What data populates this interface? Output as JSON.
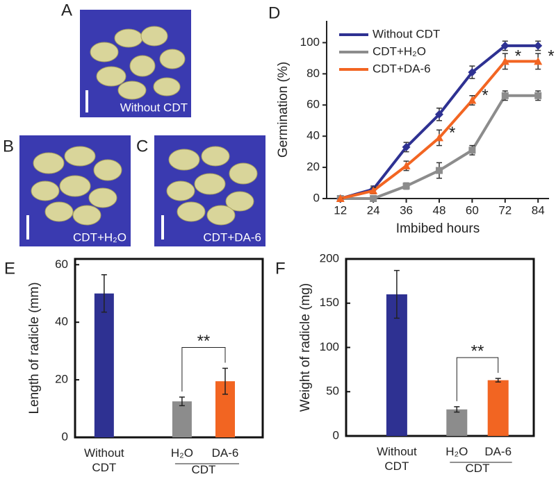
{
  "panel_letters": [
    "A",
    "B",
    "C",
    "D",
    "E",
    "F"
  ],
  "photos": [
    {
      "label": "Without CDT"
    },
    {
      "label": "CDT+H₂O"
    },
    {
      "label": "CDT+DA-6"
    }
  ],
  "chart_data": [
    {
      "type": "line",
      "x_label": "Imbibed hours",
      "y_label": "Germination (%)",
      "x": [
        12,
        24,
        36,
        48,
        60,
        72,
        84
      ],
      "xlim": [
        7,
        88
      ],
      "xticks": [
        12,
        24,
        36,
        48,
        60,
        72,
        84
      ],
      "ylim": [
        0,
        114
      ],
      "yticks": [
        0,
        20,
        40,
        60,
        80,
        100
      ],
      "legend": "top-left",
      "series": [
        {
          "name": "Without CDT",
          "color": "#2e3192",
          "marker": "diamond",
          "values": [
            0,
            6,
            33,
            54,
            81,
            98,
            98
          ],
          "errors": [
            0,
            2,
            3,
            4,
            4,
            3,
            3
          ]
        },
        {
          "name": "CDT+H₂O",
          "color": "#8c8c8c",
          "marker": "square",
          "values": [
            0,
            0,
            8,
            18,
            31,
            66,
            66
          ],
          "errors": [
            0,
            0,
            2,
            5,
            3,
            3,
            3
          ]
        },
        {
          "name": "CDT+DA-6",
          "color": "#f26522",
          "marker": "triangle",
          "values": [
            0,
            5,
            21,
            39,
            63,
            88,
            88
          ],
          "errors": [
            0,
            2,
            3,
            5,
            3,
            5,
            5
          ],
          "significance_labels": [
            null,
            null,
            null,
            "*",
            "*",
            "*",
            "*"
          ]
        }
      ]
    },
    {
      "type": "bar",
      "y_label": "Length of radicle (mm)",
      "categories": [
        "Without CDT",
        "H₂O",
        "DA-6"
      ],
      "group_label": "CDT",
      "values": [
        50,
        12.5,
        19.5
      ],
      "errors": [
        6.5,
        1.5,
        4.5
      ],
      "colors": [
        "#2e3192",
        "#8c8c8c",
        "#f26522"
      ],
      "ylim": [
        0,
        62
      ],
      "yticks": [
        0,
        20,
        40,
        60
      ],
      "significance": "**"
    },
    {
      "type": "bar",
      "y_label": "Weight of radicle (mg)",
      "categories": [
        "Without CDT",
        "H₂O",
        "DA-6"
      ],
      "group_label": "CDT",
      "values": [
        160,
        30,
        63
      ],
      "errors": [
        27,
        3,
        2
      ],
      "colors": [
        "#2e3192",
        "#8c8c8c",
        "#f26522"
      ],
      "ylim": [
        0,
        200
      ],
      "yticks": [
        0,
        50,
        100,
        150,
        200
      ],
      "significance": "**"
    }
  ]
}
